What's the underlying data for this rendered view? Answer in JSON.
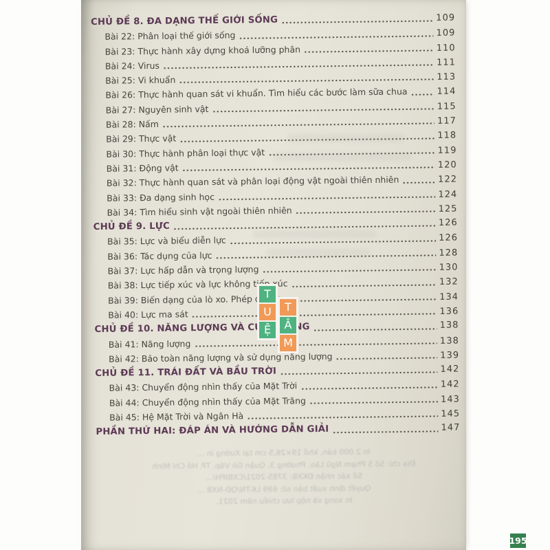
{
  "document": {
    "kind": "book-table-of-contents-photo",
    "language": "Vietnamese"
  },
  "toc": {
    "entries": [
      {
        "kind": "chapter",
        "label": "CHỦ ĐỀ 8. ĐA DẠNG THẾ GIỚI SỐNG",
        "page": "109"
      },
      {
        "kind": "lesson",
        "label": "Bài 22: Phân loại thế giới sống",
        "page": "109"
      },
      {
        "kind": "lesson",
        "label": "Bài 23: Thực hành xây dựng khoá lưỡng phân",
        "page": "110"
      },
      {
        "kind": "lesson",
        "label": "Bài 24: Virus",
        "page": "111"
      },
      {
        "kind": "lesson",
        "label": "Bài 25: Vi khuẩn",
        "page": "113"
      },
      {
        "kind": "lesson",
        "label": "Bài 26: Thực hành quan sát vi khuẩn. Tìm hiểu các bước làm sữa chua",
        "page": "114"
      },
      {
        "kind": "lesson",
        "label": "Bài 27: Nguyên sinh vật",
        "page": "115"
      },
      {
        "kind": "lesson",
        "label": "Bài 28: Nấm",
        "page": "117"
      },
      {
        "kind": "lesson",
        "label": "Bài 29: Thực vật",
        "page": "118"
      },
      {
        "kind": "lesson",
        "label": "Bài 30: Thực hành phân loại thực vật",
        "page": "119"
      },
      {
        "kind": "lesson",
        "label": "Bài 31: Động vật",
        "page": "120"
      },
      {
        "kind": "lesson",
        "label": "Bài 32: Thực hành quan sát và phân loại động vật ngoài thiên nhiên",
        "page": "122"
      },
      {
        "kind": "lesson",
        "label": "Bài 33: Đa dạng sinh học",
        "page": "124"
      },
      {
        "kind": "lesson",
        "label": "Bài 34: Tìm hiểu sinh vật ngoài thiên nhiên",
        "page": "125"
      },
      {
        "kind": "chapter",
        "label": "CHỦ ĐỀ 9. LỰC",
        "page": "126"
      },
      {
        "kind": "lesson",
        "label": "Bài 35: Lực và biểu diễn lực",
        "page": "126"
      },
      {
        "kind": "lesson",
        "label": "Bài 36: Tác dụng của lực",
        "page": "128"
      },
      {
        "kind": "lesson",
        "label": "Bài 37: Lực hấp dẫn và trọng lượng",
        "page": "130"
      },
      {
        "kind": "lesson",
        "label": "Bài 38: Lực tiếp xúc và lực không tiếp xúc",
        "page": "132"
      },
      {
        "kind": "lesson",
        "label": "Bài 39: Biến dạng của lò xo. Phép đo lực",
        "page": "134"
      },
      {
        "kind": "lesson",
        "label": "Bài 40: Lực ma sát",
        "page": "136"
      },
      {
        "kind": "chapter",
        "label": "CHỦ ĐỀ 10. NĂNG LƯỢNG VÀ CUỘC SỐNG",
        "page": "138"
      },
      {
        "kind": "lesson",
        "label": "Bài 41: Năng lượng",
        "page": "138"
      },
      {
        "kind": "lesson",
        "label": "Bài 42: Bảo toàn năng lượng và sử dụng năng lượng",
        "page": "139"
      },
      {
        "kind": "chapter",
        "label": "CHỦ ĐỀ 11. TRÁI ĐẤT VÀ BẦU TRỜI",
        "page": "142"
      },
      {
        "kind": "lesson",
        "label": "Bài 43: Chuyển động nhìn thấy của Mặt Trời",
        "page": "142"
      },
      {
        "kind": "lesson",
        "label": "Bài 44: Chuyển động nhìn thấy của Mặt Trăng",
        "page": "143"
      },
      {
        "kind": "lesson",
        "label": "Bài 45: Hệ Mặt Trời và Ngân Hà",
        "page": "145"
      },
      {
        "kind": "part",
        "label": "PHẦN THỨ HAI: ĐÁP ÁN VÀ HƯỚNG DẪN GIẢI",
        "page": "147"
      }
    ]
  },
  "watermark": {
    "name": "TUỆ TÂM",
    "columns": [
      {
        "tiles": [
          {
            "ch": "T",
            "color": "#4fb381"
          },
          {
            "ch": "U",
            "color": "#f19a58"
          },
          {
            "ch": "Ệ",
            "color": "#4fb381"
          }
        ]
      },
      {
        "tiles": [
          {
            "ch": "T",
            "color": "#f19a58"
          },
          {
            "ch": "Â",
            "color": "#4fb381"
          },
          {
            "ch": "M",
            "color": "#f19a58"
          }
        ]
      }
    ]
  },
  "ghost_text": {
    "lines": [
      "In 2.000 bản, khổ 19×26,5 cm tại Xưởng in ...",
      "Địa chỉ: Số 5 Phạm Ngũ Lão, Phường 3, Quận Gò Vấp, TP. Hồ Chí Minh",
      "Số xác nhận ĐKXB: 3785-2021/CXBIPH/...",
      "Quyết định xuất bản số: 699 LK-TN/QĐ-NXB ...",
      "In xong và nộp lưu chiểu năm 2021."
    ]
  },
  "page_badge": {
    "label": "195",
    "color": "#35804f"
  },
  "colors": {
    "heading": "#5c3a55",
    "item_text": "#46433d",
    "dot_leader": "#57534b",
    "paper": "#e5e2d7",
    "badge_green": "#35804f",
    "watermark_green": "#4fb381",
    "watermark_orange": "#f19a58"
  }
}
